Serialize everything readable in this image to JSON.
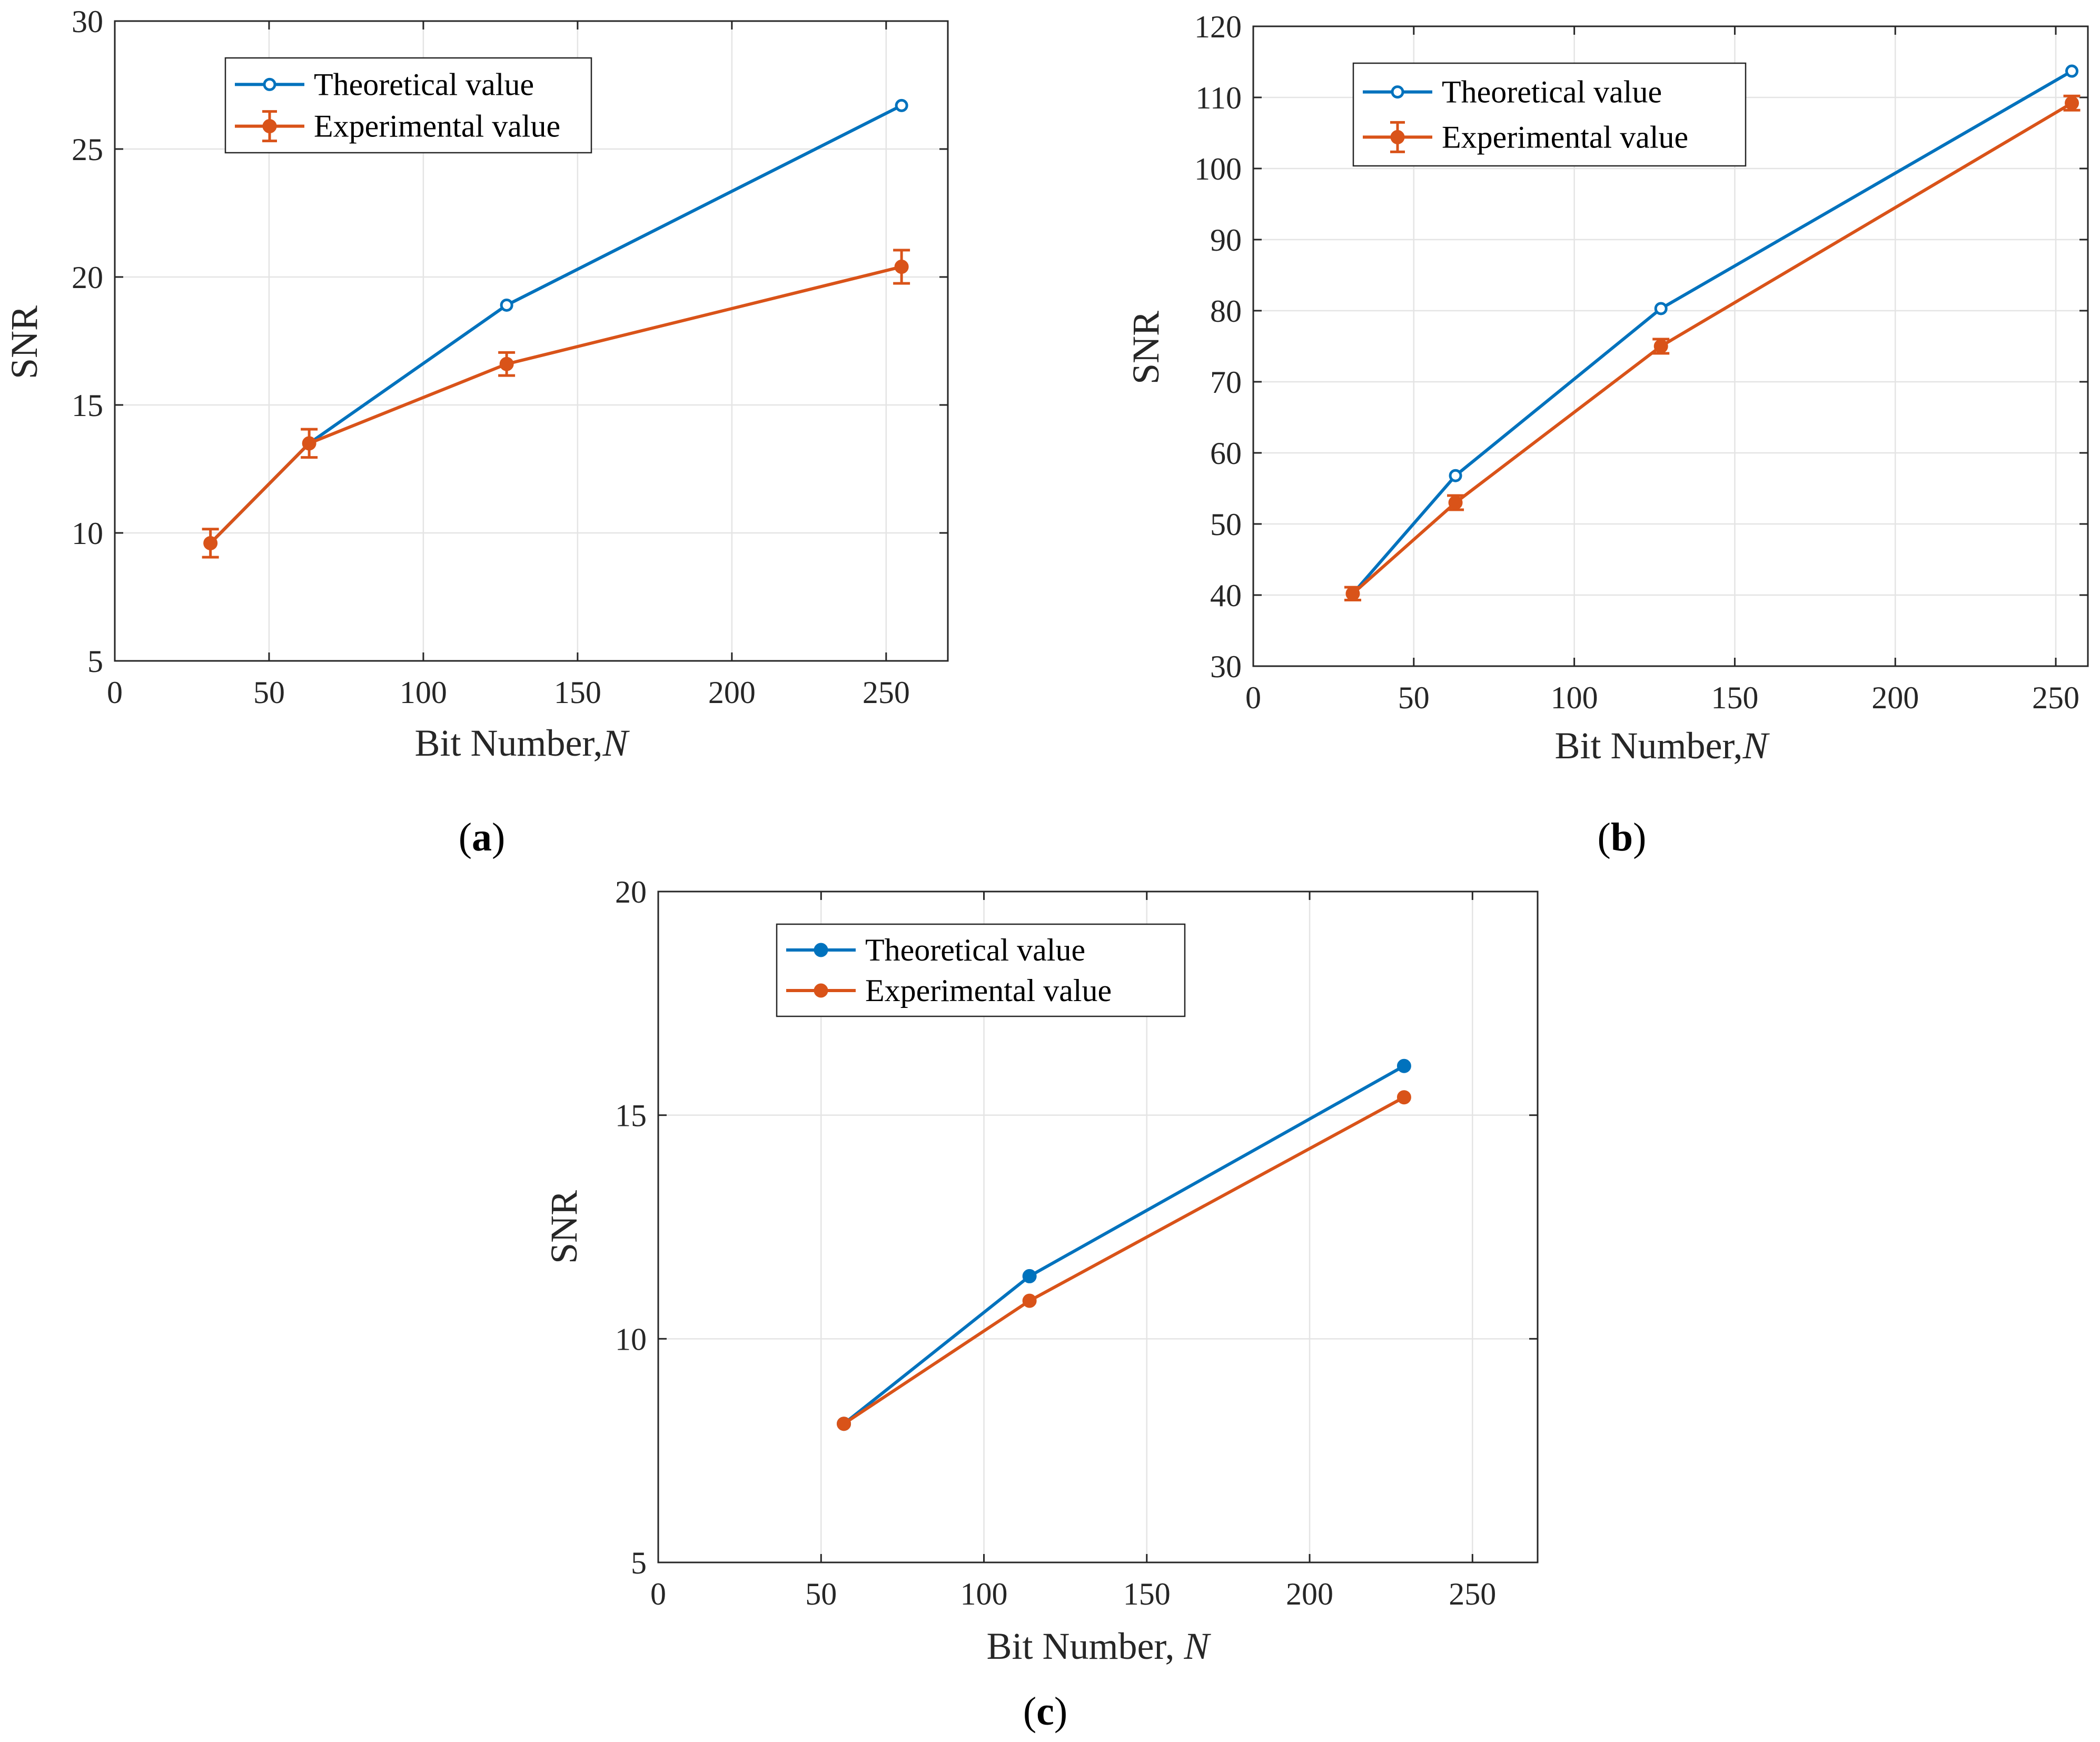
{
  "chart_data": [
    {
      "panel": "a",
      "panel_label": "a",
      "type": "line",
      "title": "",
      "xlabel": "Bit Number,",
      "xlabel_var": "N",
      "ylabel": "SNR",
      "xlim": [
        0,
        270
      ],
      "ylim": [
        5,
        30
      ],
      "xticks": [
        0,
        50,
        100,
        150,
        200,
        250
      ],
      "yticks": [
        5,
        10,
        15,
        20,
        25,
        30
      ],
      "grid": true,
      "legend_position": "top-left",
      "series": [
        {
          "name": "Theoretical value",
          "color": "#0072BD",
          "marker": "open-circle",
          "x": [
            31,
            63,
            127,
            255
          ],
          "y": [
            9.6,
            13.5,
            18.9,
            26.7
          ]
        },
        {
          "name": "Experimental value",
          "color": "#D95319",
          "marker": "filled-circle",
          "error_bars": true,
          "x": [
            31,
            63,
            127,
            255
          ],
          "y": [
            9.6,
            13.5,
            16.6,
            20.4
          ],
          "err": [
            0.55,
            0.55,
            0.45,
            0.65
          ]
        }
      ]
    },
    {
      "panel": "b",
      "panel_label": "b",
      "type": "line",
      "title": "",
      "xlabel": "Bit Number,",
      "xlabel_var": "N",
      "ylabel": "SNR",
      "xlim": [
        0,
        260
      ],
      "ylim": [
        30,
        120
      ],
      "xticks": [
        0,
        50,
        100,
        150,
        200,
        250
      ],
      "yticks": [
        30,
        40,
        50,
        60,
        70,
        80,
        90,
        100,
        110,
        120
      ],
      "grid": true,
      "legend_position": "top-left",
      "series": [
        {
          "name": "Theoretical value",
          "color": "#0072BD",
          "marker": "open-circle",
          "x": [
            31,
            63,
            127,
            255
          ],
          "y": [
            40.2,
            56.8,
            80.3,
            113.7
          ]
        },
        {
          "name": "Experimental value",
          "color": "#D95319",
          "marker": "filled-circle",
          "error_bars": true,
          "x": [
            31,
            63,
            127,
            255
          ],
          "y": [
            40.2,
            53.0,
            75.0,
            109.2
          ],
          "err": [
            0.9,
            1.0,
            1.0,
            1.0
          ]
        }
      ]
    },
    {
      "panel": "c",
      "panel_label": "c",
      "type": "line",
      "title": "",
      "xlabel": "Bit Number, ",
      "xlabel_var": "N",
      "ylabel": "SNR",
      "xlim": [
        0,
        270
      ],
      "ylim": [
        5,
        20
      ],
      "xticks": [
        0,
        50,
        100,
        150,
        200,
        250
      ],
      "yticks": [
        5,
        10,
        15,
        20
      ],
      "grid": true,
      "legend_position": "top-left",
      "series": [
        {
          "name": "Theoretical value",
          "color": "#0072BD",
          "marker": "filled-circle",
          "x": [
            57,
            114,
            229
          ],
          "y": [
            8.1,
            11.4,
            16.1
          ]
        },
        {
          "name": "Experimental value",
          "color": "#D95319",
          "marker": "filled-circle",
          "x": [
            57,
            114,
            229
          ],
          "y": [
            8.1,
            10.85,
            15.4
          ]
        }
      ]
    }
  ]
}
